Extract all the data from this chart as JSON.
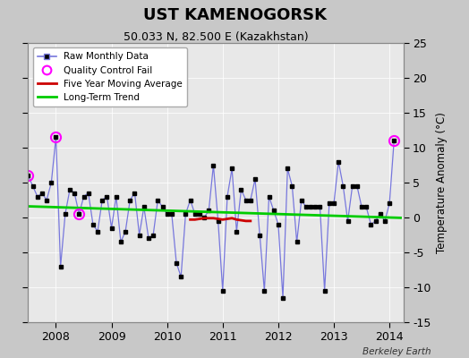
{
  "title": "UST KAMENOGORSK",
  "subtitle": "50.033 N, 82.500 E (Kazakhstan)",
  "attribution": "Berkeley Earth",
  "ylabel": "Temperature Anomaly (°C)",
  "ylim": [
    -15,
    25
  ],
  "yticks": [
    -15,
    -10,
    -5,
    0,
    5,
    10,
    15,
    20,
    25
  ],
  "xlim": [
    2007.5,
    2014.25
  ],
  "fig_bg_color": "#c8c8c8",
  "plot_bg_color": "#e8e8e8",
  "raw_line_color": "#7777dd",
  "raw_marker_color": "#000000",
  "moving_avg_color": "#cc0000",
  "trend_color": "#00cc00",
  "qc_fail_color": "#ff00ff",
  "xticks": [
    2008,
    2009,
    2010,
    2011,
    2012,
    2013,
    2014
  ],
  "raw_data": [
    [
      2007.5,
      6.0
    ],
    [
      2007.583,
      4.5
    ],
    [
      2007.667,
      3.0
    ],
    [
      2007.75,
      3.5
    ],
    [
      2007.833,
      2.5
    ],
    [
      2007.917,
      5.0
    ],
    [
      2008.0,
      11.5
    ],
    [
      2008.083,
      -7.0
    ],
    [
      2008.167,
      0.5
    ],
    [
      2008.25,
      4.0
    ],
    [
      2008.333,
      3.5
    ],
    [
      2008.417,
      0.5
    ],
    [
      2008.5,
      3.0
    ],
    [
      2008.583,
      3.5
    ],
    [
      2008.667,
      -1.0
    ],
    [
      2008.75,
      -2.0
    ],
    [
      2008.833,
      2.5
    ],
    [
      2008.917,
      3.0
    ],
    [
      2009.0,
      -1.5
    ],
    [
      2009.083,
      3.0
    ],
    [
      2009.167,
      -3.5
    ],
    [
      2009.25,
      -2.0
    ],
    [
      2009.333,
      2.5
    ],
    [
      2009.417,
      3.5
    ],
    [
      2009.5,
      -2.5
    ],
    [
      2009.583,
      1.5
    ],
    [
      2009.667,
      -3.0
    ],
    [
      2009.75,
      -2.5
    ],
    [
      2009.833,
      2.5
    ],
    [
      2009.917,
      1.5
    ],
    [
      2010.0,
      0.5
    ],
    [
      2010.083,
      0.5
    ],
    [
      2010.167,
      -6.5
    ],
    [
      2010.25,
      -8.5
    ],
    [
      2010.333,
      0.5
    ],
    [
      2010.417,
      2.5
    ],
    [
      2010.5,
      0.5
    ],
    [
      2010.583,
      0.5
    ],
    [
      2010.667,
      0.0
    ],
    [
      2010.75,
      1.0
    ],
    [
      2010.833,
      7.5
    ],
    [
      2010.917,
      -0.5
    ],
    [
      2011.0,
      -10.5
    ],
    [
      2011.083,
      3.0
    ],
    [
      2011.167,
      7.0
    ],
    [
      2011.25,
      -2.0
    ],
    [
      2011.333,
      4.0
    ],
    [
      2011.417,
      2.5
    ],
    [
      2011.5,
      2.5
    ],
    [
      2011.583,
      5.5
    ],
    [
      2011.667,
      -2.5
    ],
    [
      2011.75,
      -10.5
    ],
    [
      2011.833,
      3.0
    ],
    [
      2011.917,
      1.0
    ],
    [
      2012.0,
      -1.0
    ],
    [
      2012.083,
      -11.5
    ],
    [
      2012.167,
      7.0
    ],
    [
      2012.25,
      4.5
    ],
    [
      2012.333,
      -3.5
    ],
    [
      2012.417,
      2.5
    ],
    [
      2012.5,
      1.5
    ],
    [
      2012.583,
      1.5
    ],
    [
      2012.667,
      1.5
    ],
    [
      2012.75,
      1.5
    ],
    [
      2012.833,
      -10.5
    ],
    [
      2012.917,
      2.0
    ],
    [
      2013.0,
      2.0
    ],
    [
      2013.083,
      8.0
    ],
    [
      2013.167,
      4.5
    ],
    [
      2013.25,
      -0.5
    ],
    [
      2013.333,
      4.5
    ],
    [
      2013.417,
      4.5
    ],
    [
      2013.5,
      1.5
    ],
    [
      2013.583,
      1.5
    ],
    [
      2013.667,
      -1.0
    ],
    [
      2013.75,
      -0.5
    ],
    [
      2013.833,
      0.5
    ],
    [
      2013.917,
      -0.5
    ],
    [
      2014.0,
      2.0
    ],
    [
      2014.083,
      11.0
    ]
  ],
  "qc_fail_points": [
    [
      2007.5,
      6.0
    ],
    [
      2008.0,
      11.5
    ],
    [
      2008.417,
      0.5
    ],
    [
      2014.083,
      11.0
    ]
  ],
  "moving_avg": [
    [
      2010.417,
      -0.3
    ],
    [
      2010.5,
      -0.3
    ],
    [
      2010.583,
      -0.2
    ],
    [
      2010.667,
      -0.1
    ],
    [
      2010.75,
      -0.1
    ],
    [
      2010.833,
      -0.1
    ],
    [
      2010.917,
      -0.2
    ],
    [
      2011.0,
      -0.3
    ],
    [
      2011.083,
      -0.2
    ],
    [
      2011.167,
      -0.1
    ],
    [
      2011.25,
      -0.3
    ],
    [
      2011.333,
      -0.4
    ],
    [
      2011.417,
      -0.5
    ],
    [
      2011.5,
      -0.5
    ]
  ],
  "trend_x": [
    2007.5,
    2014.2
  ],
  "trend_y": [
    1.6,
    -0.05
  ]
}
